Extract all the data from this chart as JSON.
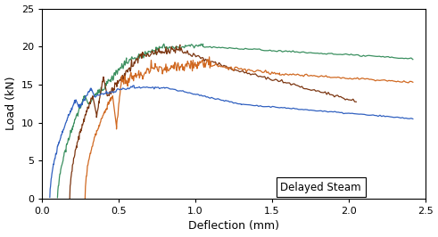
{
  "title": "",
  "xlabel": "Deflection (mm)",
  "ylabel": "Load (kN)",
  "xlim": [
    0,
    2.5
  ],
  "ylim": [
    0,
    25
  ],
  "xticks": [
    0.0,
    0.5,
    1.0,
    1.5,
    2.0,
    2.5
  ],
  "yticks": [
    0,
    5,
    10,
    15,
    20,
    25
  ],
  "annotation": "Delayed Steam",
  "colors": {
    "green": "#3a8f5f",
    "brown": "#7b3510",
    "orange": "#d06820",
    "blue": "#3060c0"
  },
  "figsize": [
    4.91,
    2.66
  ],
  "dpi": 100
}
